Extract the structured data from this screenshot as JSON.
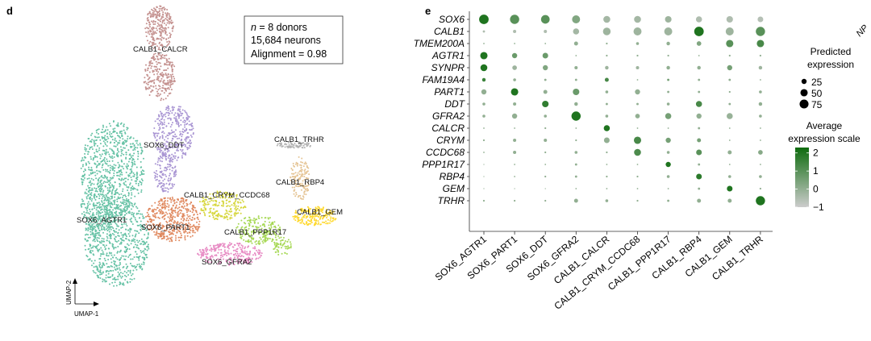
{
  "panel_d": {
    "letter": "d",
    "inset": {
      "line1_italic": "n",
      "line1_rest": " = 8 donors",
      "line2": "15,684 neurons",
      "line3": "Alignment = 0.98"
    },
    "axis_x": "UMAP-1",
    "axis_y": "UMAP-2"
  },
  "panel_e": {
    "letter": "e",
    "cut_off_label": "NP",
    "legend_size_title": [
      "Predicted",
      "expression"
    ],
    "legend_color_title": [
      "Average",
      "expression scale"
    ]
  },
  "chart_data": [
    {
      "type": "scatter",
      "title": "",
      "xlabel": "UMAP-1",
      "ylabel": "UMAP-2",
      "clusters": [
        {
          "name": "CALB1_CALCR",
          "color": "#c4918f"
        },
        {
          "name": "SOX6_DDT",
          "color": "#a995d3"
        },
        {
          "name": "SOX6_AGTR1",
          "color": "#66c2a5"
        },
        {
          "name": "SOX6_PART1",
          "color": "#e0895f"
        },
        {
          "name": "CALB1_CRYM_CCDC68",
          "color": "#d6d63c"
        },
        {
          "name": "CALB1_PPP1R17",
          "color": "#a6d854"
        },
        {
          "name": "SOX6_GFRA2",
          "color": "#e78ac3"
        },
        {
          "name": "CALB1_TRHR",
          "color": "#b3b3b3"
        },
        {
          "name": "CALB1_RBP4",
          "color": "#e5c494"
        },
        {
          "name": "CALB1_GEM",
          "color": "#ffd92f"
        }
      ]
    },
    {
      "type": "dotplot",
      "genes": [
        "SOX6",
        "CALB1",
        "TMEM200A",
        "AGTR1",
        "SYNPR",
        "FAM19A4",
        "PART1",
        "DDT",
        "GFRA2",
        "CALCR",
        "CRYM",
        "CCDC68",
        "PPP1R17",
        "RBP4",
        "GEM",
        "TRHR"
      ],
      "clusters": [
        "SOX6_AGTR1",
        "SOX6_PART1",
        "SOX6_DDT",
        "SOX6_GFRA2",
        "CALB1_CALCR",
        "CALB1_CRYM_CCDC68",
        "CALB1_PPP1R17",
        "CALB1_RBP4",
        "CALB1_GEM",
        "CALB1_TRHR"
      ],
      "size_legend": {
        "title": "Predicted expression",
        "values": [
          25,
          50,
          75
        ]
      },
      "color_legend": {
        "title": "Average expression scale",
        "ticks": [
          2,
          1,
          0,
          -1
        ],
        "range": [
          -1,
          2.3
        ],
        "low_color": "#cccccc",
        "high_color": "#0e6b0e"
      },
      "percent": [
        [
          85,
          80,
          70,
          60,
          45,
          45,
          40,
          35,
          40,
          30
        ],
        [
          5,
          10,
          10,
          35,
          55,
          60,
          60,
          85,
          60,
          80
        ],
        [
          2,
          2,
          2,
          15,
          3,
          8,
          12,
          20,
          50,
          50
        ],
        [
          50,
          25,
          30,
          2,
          3,
          3,
          3,
          2,
          3,
          3
        ],
        [
          45,
          20,
          25,
          10,
          12,
          10,
          12,
          12,
          25,
          12
        ],
        [
          12,
          8,
          5,
          5,
          15,
          2,
          5,
          5,
          5,
          2
        ],
        [
          25,
          50,
          15,
          40,
          8,
          25,
          5,
          5,
          3,
          8
        ],
        [
          8,
          10,
          40,
          12,
          5,
          5,
          8,
          35,
          5,
          12
        ],
        [
          8,
          25,
          8,
          80,
          8,
          20,
          35,
          25,
          35,
          8
        ],
        [
          2,
          2,
          3,
          2,
          35,
          2,
          2,
          5,
          2,
          2
        ],
        [
          3,
          10,
          10,
          3,
          30,
          50,
          25,
          15,
          2,
          2
        ],
        [
          2,
          10,
          3,
          8,
          3,
          45,
          8,
          30,
          15,
          20
        ],
        [
          1,
          2,
          2,
          5,
          2,
          2,
          25,
          5,
          2,
          2
        ],
        [
          1,
          2,
          3,
          5,
          3,
          3,
          8,
          30,
          8,
          8
        ],
        [
          1,
          1,
          1,
          2,
          2,
          2,
          2,
          5,
          30,
          3
        ],
        [
          3,
          3,
          3,
          15,
          8,
          3,
          5,
          15,
          15,
          80
        ]
      ],
      "avg_expression": [
        [
          2,
          1,
          1,
          0.3,
          -0.3,
          -0.3,
          -0.2,
          -0.5,
          -0.5,
          -0.6
        ],
        [
          -0.5,
          -0.5,
          -0.5,
          -0.3,
          -0.2,
          -0.2,
          -0.2,
          2,
          -0.2,
          1
        ],
        [
          0,
          0,
          0,
          0,
          0,
          0,
          0,
          0.3,
          1,
          1.3
        ],
        [
          2,
          0.7,
          0.7,
          0,
          0,
          0,
          0,
          0,
          0,
          0
        ],
        [
          2,
          -0.2,
          0.3,
          0,
          -0.2,
          -0.2,
          0,
          0,
          0.5,
          -0.2
        ],
        [
          1.5,
          0,
          0,
          0,
          1.3,
          0,
          0.5,
          0,
          0,
          0
        ],
        [
          0,
          2,
          0,
          0.7,
          0,
          0,
          0,
          0,
          0,
          0
        ],
        [
          0,
          0,
          1.7,
          0,
          0,
          0,
          0,
          1.3,
          0,
          0
        ],
        [
          0,
          0,
          0,
          2,
          0,
          0,
          0.5,
          0,
          -0.1,
          0
        ],
        [
          0,
          0,
          0,
          0,
          2,
          0,
          0,
          0,
          0,
          0
        ],
        [
          0,
          0,
          0,
          0,
          0,
          1.3,
          0.5,
          0.5,
          0,
          0
        ],
        [
          0,
          0,
          0,
          0,
          0,
          1.2,
          0,
          1,
          0,
          0.2
        ],
        [
          0,
          0,
          0,
          0,
          0,
          0,
          2,
          0,
          0,
          0
        ],
        [
          0,
          0,
          0,
          0,
          0,
          0,
          0,
          1.8,
          0,
          0
        ],
        [
          0,
          0,
          0,
          0,
          0,
          0,
          0,
          0,
          2,
          0
        ],
        [
          0,
          0,
          0,
          0,
          0,
          0,
          0,
          0,
          0,
          2
        ]
      ]
    }
  ]
}
